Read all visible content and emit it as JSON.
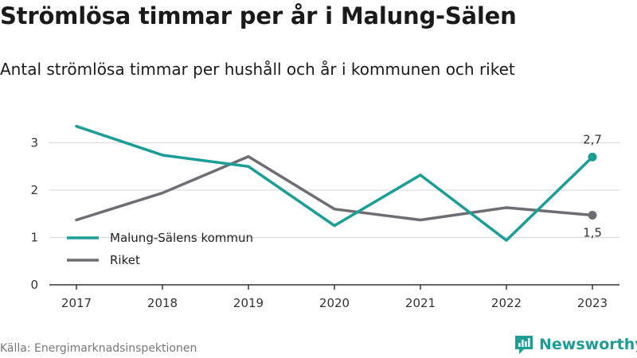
{
  "header": {
    "title": "Strömlösa timmar per år i Malung-Sälen",
    "subtitle": "Antal strömlösa timmar per hushåll och år i kommunen och riket"
  },
  "footer": {
    "source": "Källa: Energimarknadsinspektionen",
    "brand": "Newsworthy"
  },
  "colors": {
    "teal": "#1a9e96",
    "gray": "#6f6d74",
    "grid": "#d6d6d6"
  },
  "chart_data": {
    "type": "line",
    "x": [
      "2017",
      "2018",
      "2019",
      "2020",
      "2021",
      "2022",
      "2023"
    ],
    "ylim": [
      0,
      3.5
    ],
    "yticks": [
      "0",
      "1",
      "2",
      "3"
    ],
    "grid": true,
    "legend_position": "left",
    "series": [
      {
        "name": "Malung-Sälens kommun",
        "values": [
          3.35,
          2.74,
          2.5,
          1.25,
          2.32,
          0.94,
          2.7
        ],
        "end_label": "2,7"
      },
      {
        "name": "Riket",
        "values": [
          1.37,
          1.94,
          2.71,
          1.6,
          1.37,
          1.63,
          1.47
        ],
        "end_label": "1,5"
      }
    ]
  }
}
